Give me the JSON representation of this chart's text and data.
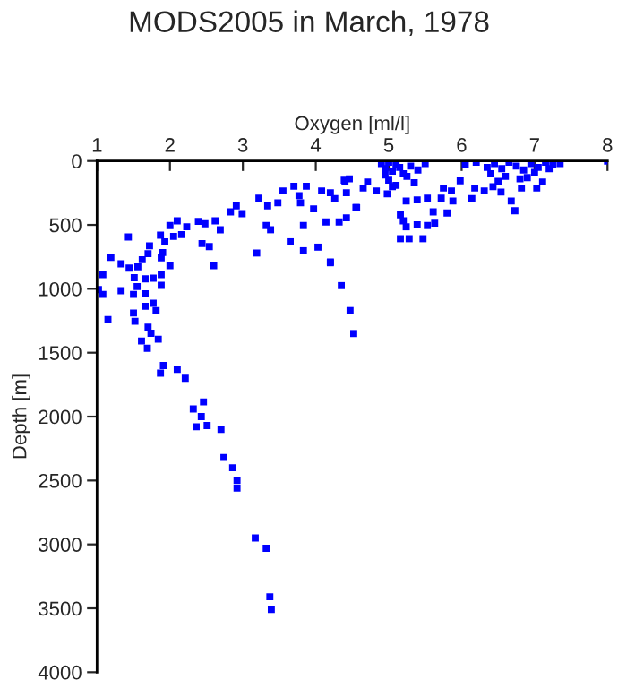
{
  "chart_data": {
    "type": "scatter",
    "title": "MODS2005 in March, 1978",
    "xlabel": "Oxygen [ml/l]",
    "ylabel": "Depth [m]",
    "xlim": [
      1,
      8
    ],
    "xticks": [
      1,
      2,
      3,
      4,
      5,
      6,
      7,
      8
    ],
    "ylim": [
      4000,
      0
    ],
    "yticks": [
      0,
      500,
      1000,
      1500,
      2000,
      2500,
      3000,
      3500,
      4000
    ],
    "marker": "square",
    "grid": false,
    "legend": false,
    "series": [
      {
        "color": "#0000ff",
        "x": [
          1.87,
          1.91,
          2.1,
          2.21,
          2.46,
          2.32,
          2.43,
          2.36,
          2.51,
          2.7,
          2.74,
          2.86,
          2.92,
          2.92,
          3.17,
          3.32,
          3.37,
          3.39,
          4.2,
          4.35,
          4.47,
          4.52,
          1.43,
          1.19,
          1.08,
          1.02,
          1.08,
          1.15,
          1.33,
          1.33,
          1.44,
          1.51,
          1.5,
          1.5,
          1.52,
          1.61,
          1.69,
          1.7,
          1.74,
          1.84,
          1.66,
          1.77,
          1.81,
          1.66,
          1.55,
          1.66,
          1.77,
          1.88,
          1.88,
          1.56,
          1.62,
          1.7,
          1.72,
          1.87,
          1.93,
          2.0,
          2.05,
          2.1,
          2.16,
          2.23,
          2.39,
          2.44,
          2.48,
          2.54,
          2.6,
          2.62,
          2.69,
          2.83,
          2.91,
          2.99,
          3.19,
          3.22,
          3.34,
          3.32,
          3.38,
          3.48,
          3.55,
          3.65,
          3.7,
          3.77,
          3.79,
          3.83,
          3.83,
          3.87,
          3.97,
          4.03,
          4.08,
          4.14,
          4.2,
          4.26,
          4.32,
          4.39,
          4.42,
          4.55,
          4.2,
          1.88,
          2.0,
          1.9,
          5.16,
          5.16,
          5.28,
          5.47,
          5.24,
          5.39,
          5.53,
          5.2,
          5.63,
          5.61,
          5.8,
          5.24,
          5.39,
          5.53,
          5.72,
          5.88,
          5.75,
          5.86,
          5.98,
          6.14,
          6.18,
          6.31,
          6.43,
          6.54,
          6.68,
          6.73,
          6.82,
          7.03,
          7.11,
          4.83,
          4.98,
          4.71,
          4.65,
          4.56,
          4.42,
          4.4,
          4.46,
          4.9,
          4.95,
          5.0,
          5.05,
          5.1,
          5.15,
          5.2,
          5.3,
          5.4,
          5.5,
          5.0,
          5.1,
          5.25,
          5.35,
          4.95,
          5.05,
          6.05,
          6.2,
          6.35,
          6.45,
          6.55,
          6.65,
          6.75,
          6.85,
          6.95,
          7.05,
          7.15,
          7.25,
          7.35,
          6.4,
          6.6,
          6.8,
          7.0,
          7.2,
          6.5,
          6.9,
          8.0
        ],
        "values": [
          1660,
          1600,
          1630,
          1700,
          1885,
          1940,
          2000,
          2080,
          2070,
          2100,
          2320,
          2400,
          2500,
          2560,
          2950,
          3030,
          3410,
          3510,
          790,
          975,
          1170,
          1350,
          594,
          754,
          889,
          1006,
          1044,
          1240,
          805,
          1015,
          838,
          913,
          1044,
          1189,
          1254,
          1408,
          1465,
          1300,
          1348,
          1394,
          1137,
          1113,
          1170,
          1039,
          983,
          922,
          917,
          973,
          889,
          828,
          772,
          725,
          664,
          580,
          632,
          505,
          590,
          468,
          576,
          515,
          473,
          646,
          491,
          670,
          819,
          468,
          538,
          398,
          351,
          412,
          720,
          290,
          351,
          505,
          538,
          327,
          234,
          632,
          197,
          271,
          327,
          505,
          702,
          197,
          374,
          674,
          234,
          477,
          796,
          295,
          477,
          150,
          445,
          365,
          248,
          758,
          819,
          716,
          421,
          608,
          608,
          608,
          515,
          500,
          505,
          468,
          487,
          398,
          407,
          313,
          304,
          290,
          290,
          313,
          211,
          234,
          155,
          295,
          211,
          234,
          201,
          243,
          313,
          389,
          211,
          211,
          164,
          234,
          257,
          164,
          211,
          365,
          248,
          164,
          140,
          20,
          60,
          10,
          80,
          30,
          50,
          100,
          40,
          70,
          20,
          150,
          190,
          120,
          170,
          110,
          200,
          30,
          10,
          50,
          20,
          60,
          10,
          40,
          70,
          20,
          50,
          10,
          30,
          20,
          100,
          120,
          140,
          90,
          60,
          160,
          130,
          0
        ]
      }
    ]
  }
}
